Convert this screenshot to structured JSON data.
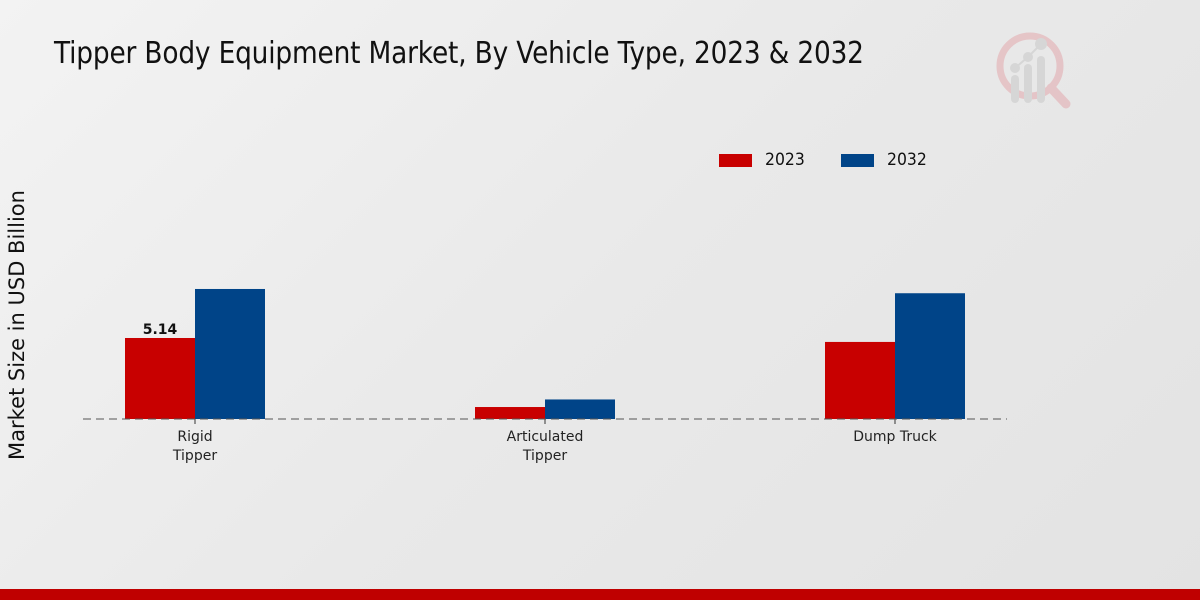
{
  "title": "Tipper Body Equipment Market, By Vehicle Type, 2023 & 2032",
  "logo": "market-research-logo-icon",
  "chart_data": {
    "type": "bar",
    "title": "Tipper Body Equipment Market, By Vehicle Type, 2023 & 2032",
    "xlabel": "",
    "ylabel": "Market Size in USD Billion",
    "categories": [
      "Rigid\nTipper",
      "Articulated\nTipper",
      "Dump Truck"
    ],
    "series": [
      {
        "name": "2023",
        "color": "#c80000",
        "values": [
          5.14,
          0.76,
          4.89
        ]
      },
      {
        "name": "2032",
        "color": "#004488",
        "values": [
          8.25,
          1.24,
          7.98
        ]
      }
    ],
    "data_labels": [
      {
        "series": "2023",
        "category_index": 0,
        "text": "5.14"
      }
    ],
    "ylim": [
      0,
      10
    ],
    "grid": false,
    "baseline_style": "dashed",
    "legend": {
      "placement": "top-right",
      "entries": [
        "2023",
        "2032"
      ]
    }
  }
}
